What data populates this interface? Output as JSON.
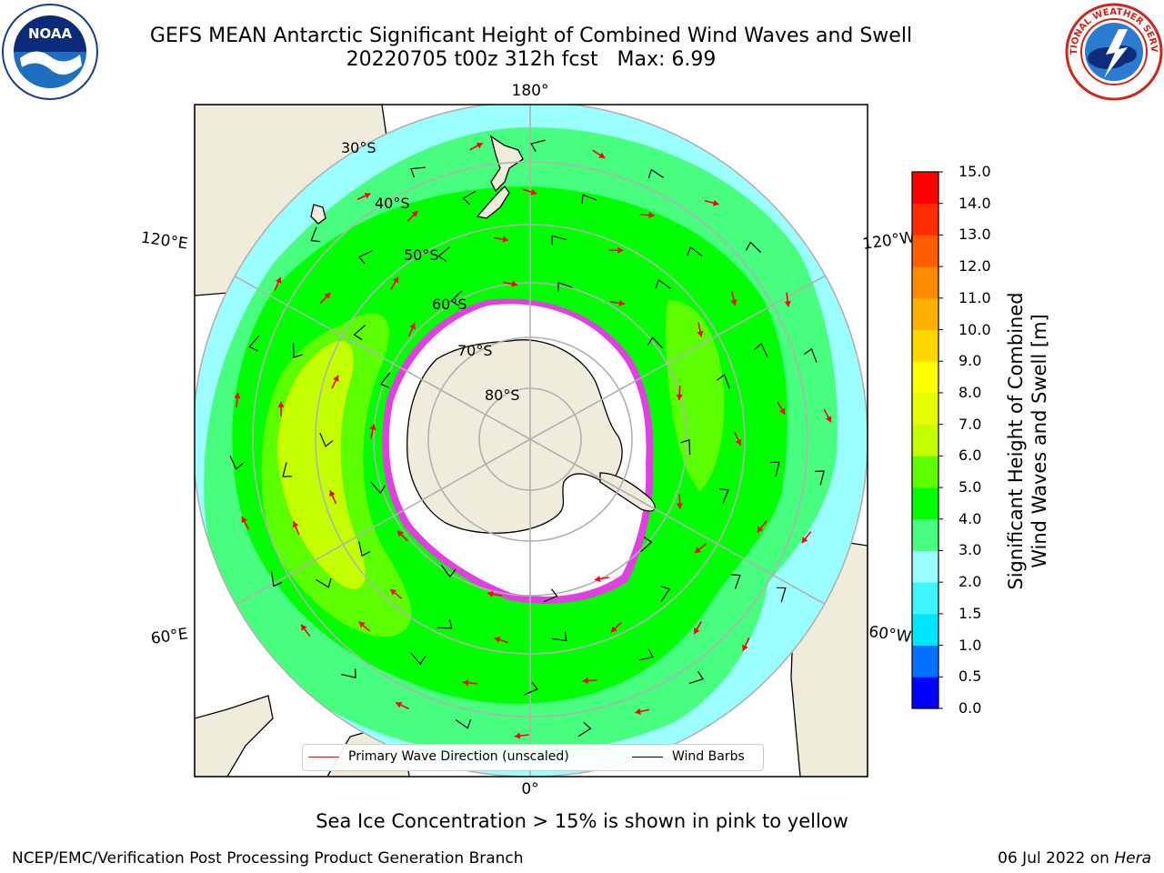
{
  "header": {
    "title_line_1": "GEFS MEAN Antarctic Significant Height of Combined Wind Waves and Swell",
    "title_line_2": "20220705 t00z 312h fcst   Max: 6.99"
  },
  "logos": {
    "left": "noaa-logo",
    "left_text": "NOAA",
    "right": "national-weather-service-logo",
    "right_text": "NATIONAL WEATHER SERVICE"
  },
  "map": {
    "projection": "south-polar-stereographic",
    "longitude_labels": [
      "180°",
      "120°E",
      "120°W",
      "60°E",
      "60°W",
      "0°"
    ],
    "latitude_labels": [
      "30°S",
      "40°S",
      "50°S",
      "60°S",
      "70°S",
      "80°S"
    ],
    "land_color": "#efecdc",
    "ocean_outside_color": "#ffffff",
    "legend": {
      "wave_direction": "Primary Wave Direction (unscaled)",
      "wind_barbs": "Wind Barbs"
    }
  },
  "colorbar": {
    "label_line_1": "Significant Height of Combined",
    "label_line_2": "Wind Waves and Swell [m]",
    "ticks": [
      "0.0",
      "0.5",
      "1.0",
      "1.5",
      "2.0",
      "3.0",
      "4.0",
      "5.0",
      "6.0",
      "7.0",
      "8.0",
      "9.0",
      "10.0",
      "11.0",
      "12.0",
      "13.0",
      "14.0",
      "15.0"
    ],
    "colors": [
      "#0000ff",
      "#0072ff",
      "#00e5ff",
      "#3df5ff",
      "#9cffff",
      "#48ff80",
      "#00ff00",
      "#5cff00",
      "#c3ff00",
      "#e6ff00",
      "#ffff00",
      "#ffd700",
      "#ffb000",
      "#ff8c00",
      "#ff5e00",
      "#ff2d00",
      "#ff0000"
    ]
  },
  "footnote": "Sea Ice Concentration > 15% is shown in pink to yellow",
  "credit_left": "NCEP/EMC/Verification Post Processing Product Generation Branch",
  "credit_right_prefix": "06 Jul 2022 on ",
  "credit_right_host": "Hera"
}
